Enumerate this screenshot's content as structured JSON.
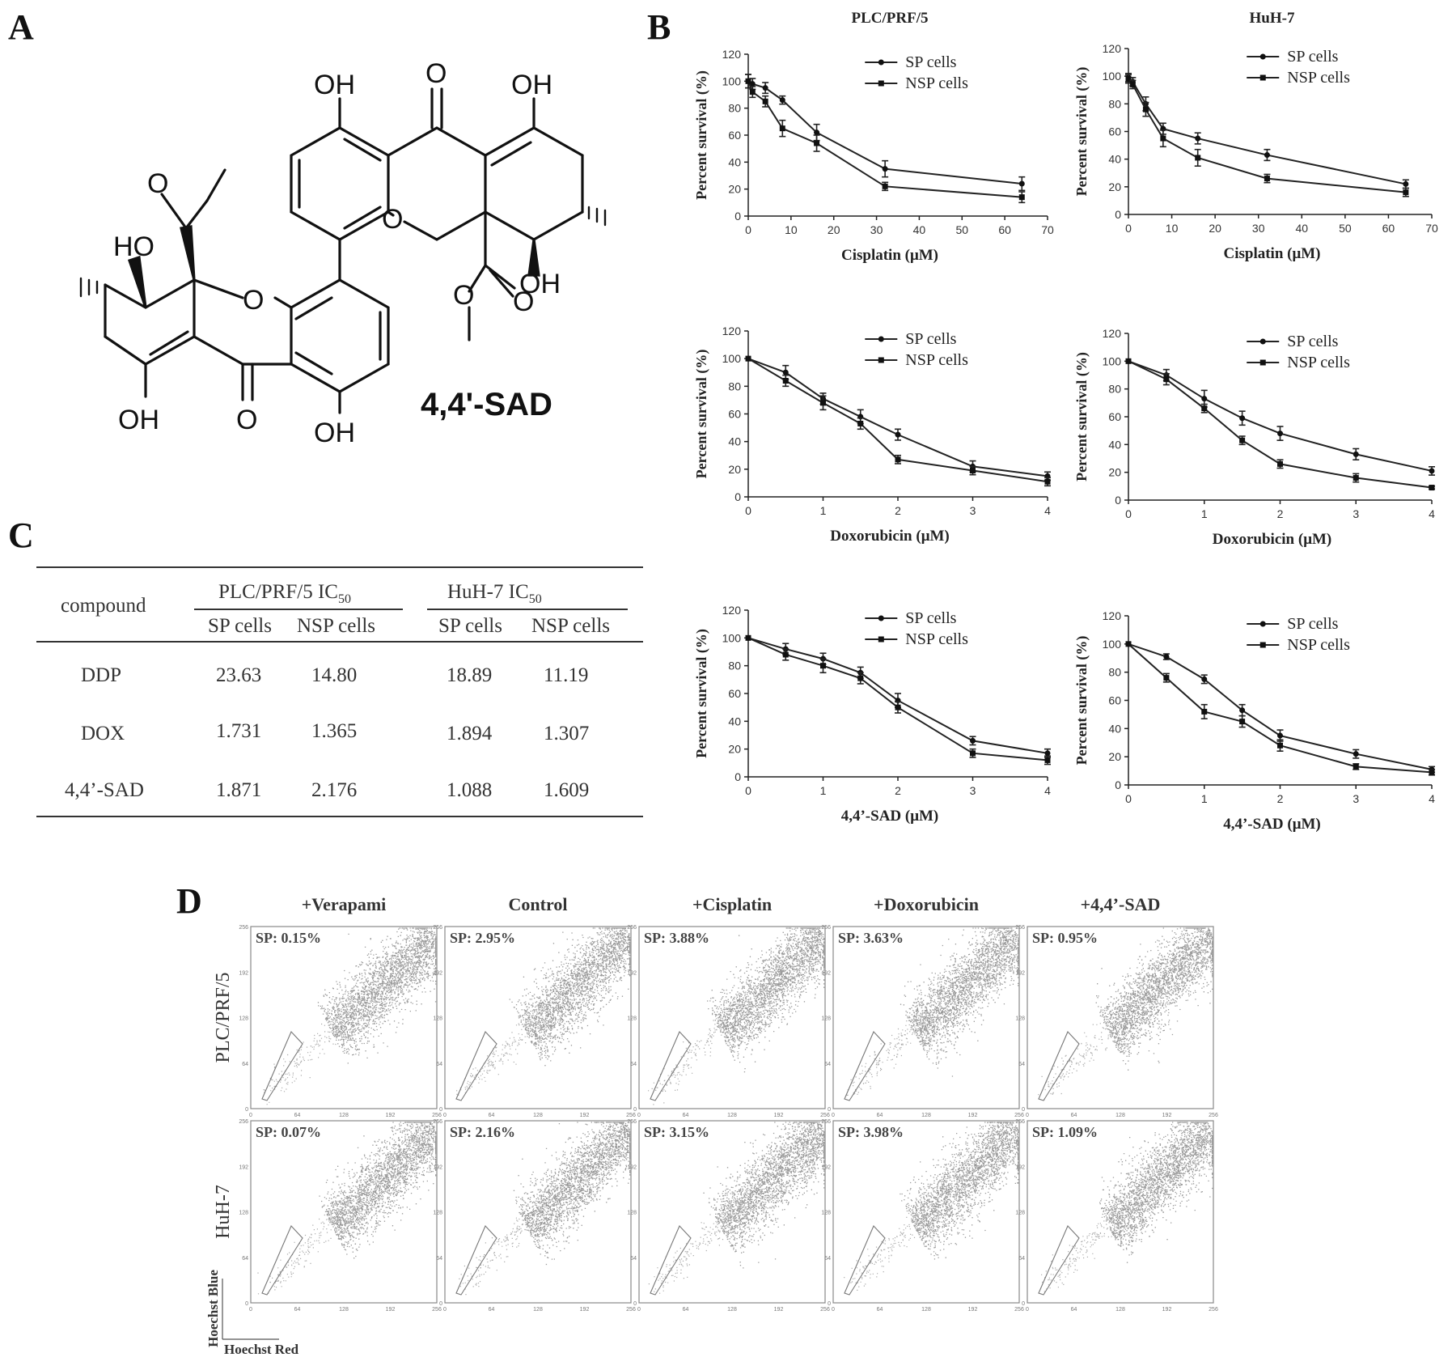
{
  "panel_letters": {
    "a": "A",
    "b": "B",
    "c": "C",
    "d": "D"
  },
  "panel_a": {
    "compound_name": "4,4'-SAD",
    "atoms": {
      "oh": "OH",
      "ho": "HO",
      "o": "O"
    }
  },
  "panel_c": {
    "col_compound": "compound",
    "group1": "PLC/PRF/5 IC",
    "group2": "HuH-7 IC",
    "subscript": "50",
    "sub_headers": [
      "SP cells",
      "NSP cells",
      "SP cells",
      "NSP cells"
    ],
    "rows": [
      {
        "compound": "DDP",
        "values": [
          "23.63",
          "14.80",
          "18.89",
          "11.19"
        ]
      },
      {
        "compound": "DOX",
        "values": [
          "1.731",
          "1.365",
          "1.894",
          "1.307"
        ]
      },
      {
        "compound": "4,4’-SAD",
        "values": [
          "1.871",
          "2.176",
          "1.088",
          "1.609"
        ]
      }
    ]
  },
  "chart_data": [
    {
      "type": "line",
      "title": "PLC/PRF/5",
      "xlabel": "Cisplatin (μM)",
      "ylabel": "Percent survival (%)",
      "xlim": [
        0,
        70
      ],
      "ylim": [
        0,
        120
      ],
      "xticks": [
        0,
        10,
        20,
        30,
        40,
        50,
        60,
        70
      ],
      "yticks": [
        0,
        20,
        40,
        60,
        80,
        100,
        120
      ],
      "legend": "top-right",
      "series": [
        {
          "name": "SP cells",
          "marker": "circle",
          "x": [
            0,
            1,
            4,
            8,
            16,
            32,
            64
          ],
          "y": [
            100,
            98,
            95,
            86,
            62,
            35,
            24
          ],
          "err": [
            5,
            4,
            4,
            3,
            6,
            6,
            5
          ]
        },
        {
          "name": "NSP cells",
          "marker": "square",
          "x": [
            0,
            1,
            4,
            8,
            16,
            32,
            64
          ],
          "y": [
            100,
            92,
            85,
            65,
            54,
            22,
            14
          ],
          "err": [
            5,
            4,
            4,
            6,
            6,
            3,
            4
          ]
        }
      ]
    },
    {
      "type": "line",
      "title": "HuH-7",
      "xlabel": "Cisplatin (μM)",
      "ylabel": "Percent survival (%)",
      "xlim": [
        0,
        70
      ],
      "ylim": [
        0,
        120
      ],
      "xticks": [
        0,
        10,
        20,
        30,
        40,
        50,
        60,
        70
      ],
      "yticks": [
        0,
        20,
        40,
        60,
        80,
        100,
        120
      ],
      "legend": "top-right",
      "series": [
        {
          "name": "SP cells",
          "marker": "circle",
          "x": [
            0,
            1,
            4,
            8,
            16,
            32,
            64
          ],
          "y": [
            99,
            96,
            80,
            62,
            55,
            43,
            22
          ],
          "err": [
            3,
            3,
            5,
            4,
            4,
            4,
            3
          ]
        },
        {
          "name": "NSP cells",
          "marker": "square",
          "x": [
            0,
            1,
            4,
            8,
            16,
            32,
            64
          ],
          "y": [
            98,
            94,
            76,
            55,
            41,
            26,
            16
          ],
          "err": [
            3,
            3,
            5,
            6,
            6,
            3,
            3
          ]
        }
      ]
    },
    {
      "type": "line",
      "title": "",
      "xlabel": "Doxorubicin (μM)",
      "ylabel": "Percent survival (%)",
      "xlim": [
        0,
        4
      ],
      "ylim": [
        0,
        120
      ],
      "xticks": [
        0,
        1,
        2,
        3,
        4
      ],
      "yticks": [
        0,
        20,
        40,
        60,
        80,
        100,
        120
      ],
      "legend": "top-right",
      "series": [
        {
          "name": "SP cells",
          "marker": "circle",
          "x": [
            0,
            0.5,
            1,
            1.5,
            2,
            3,
            4
          ],
          "y": [
            100,
            90,
            71,
            58,
            45,
            22,
            15
          ],
          "err": [
            0,
            5,
            4,
            5,
            4,
            4,
            3
          ]
        },
        {
          "name": "NSP cells",
          "marker": "square",
          "x": [
            0,
            0.5,
            1,
            1.5,
            2,
            3,
            4
          ],
          "y": [
            100,
            84,
            68,
            53,
            27,
            19,
            11
          ],
          "err": [
            0,
            4,
            5,
            4,
            3,
            3,
            3
          ]
        }
      ]
    },
    {
      "type": "line",
      "title": "",
      "xlabel": "Doxorubicin (μM)",
      "ylabel": "Percent survival (%)",
      "xlim": [
        0,
        4
      ],
      "ylim": [
        0,
        120
      ],
      "xticks": [
        0,
        1,
        2,
        3,
        4
      ],
      "yticks": [
        0,
        20,
        40,
        60,
        80,
        100,
        120
      ],
      "legend": "top-right",
      "series": [
        {
          "name": "SP cells",
          "marker": "circle",
          "x": [
            0,
            0.5,
            1,
            1.5,
            2,
            3,
            4
          ],
          "y": [
            100,
            90,
            73,
            59,
            48,
            33,
            21
          ],
          "err": [
            0,
            4,
            6,
            5,
            5,
            4,
            3
          ]
        },
        {
          "name": "NSP cells",
          "marker": "square",
          "x": [
            0,
            0.5,
            1,
            1.5,
            2,
            3,
            4
          ],
          "y": [
            100,
            87,
            66,
            43,
            26,
            16,
            9
          ],
          "err": [
            0,
            4,
            3,
            3,
            3,
            3,
            1
          ]
        }
      ]
    },
    {
      "type": "line",
      "title": "",
      "xlabel": "4,4’-SAD (μM)",
      "ylabel": "Percent survival (%)",
      "xlim": [
        0,
        4
      ],
      "ylim": [
        0,
        120
      ],
      "xticks": [
        0,
        1,
        2,
        3,
        4
      ],
      "yticks": [
        0,
        20,
        40,
        60,
        80,
        100,
        120
      ],
      "legend": "top-right",
      "series": [
        {
          "name": "SP cells",
          "marker": "circle",
          "x": [
            0,
            0.5,
            1,
            1.5,
            2,
            3,
            4
          ],
          "y": [
            100,
            92,
            85,
            75,
            55,
            26,
            17
          ],
          "err": [
            0,
            4,
            4,
            4,
            5,
            3,
            3
          ]
        },
        {
          "name": "NSP cells",
          "marker": "square",
          "x": [
            0,
            0.5,
            1,
            1.5,
            2,
            3,
            4
          ],
          "y": [
            100,
            88,
            80,
            71,
            50,
            17,
            12
          ],
          "err": [
            0,
            4,
            5,
            4,
            4,
            3,
            3
          ]
        }
      ]
    },
    {
      "type": "line",
      "title": "",
      "xlabel": "4,4’-SAD (μM)",
      "ylabel": "Percent survival (%)",
      "xlim": [
        0,
        4
      ],
      "ylim": [
        0,
        120
      ],
      "xticks": [
        0,
        1,
        2,
        3,
        4
      ],
      "yticks": [
        0,
        20,
        40,
        60,
        80,
        100,
        120
      ],
      "legend": "top-right",
      "series": [
        {
          "name": "SP cells",
          "marker": "circle",
          "x": [
            0,
            0.5,
            1,
            1.5,
            2,
            3,
            4
          ],
          "y": [
            100,
            91,
            75,
            53,
            35,
            22,
            11
          ],
          "err": [
            0,
            2,
            3,
            4,
            4,
            3,
            2
          ]
        },
        {
          "name": "NSP cells",
          "marker": "square",
          "x": [
            0,
            0.5,
            1,
            1.5,
            2,
            3,
            4
          ],
          "y": [
            100,
            76,
            52,
            45,
            28,
            13,
            9
          ],
          "err": [
            0,
            3,
            5,
            4,
            4,
            2,
            2
          ]
        }
      ]
    }
  ],
  "panel_d": {
    "columns": [
      "+Verapami",
      "Control",
      "+Cisplatin",
      "+Doxorubicin",
      "+4,4’-SAD"
    ],
    "rows": [
      {
        "label": "PLC/PRF/5",
        "sp": [
          "SP: 0.15%",
          "SP: 2.95%",
          "SP: 3.88%",
          "SP: 3.63%",
          "SP: 0.95%"
        ]
      },
      {
        "label": "HuH-7",
        "sp": [
          "SP: 0.07%",
          "SP: 2.16%",
          "SP: 3.15%",
          "SP: 3.98%",
          "SP: 1.09%"
        ]
      }
    ],
    "axis_ticks": [
      "0",
      "64",
      "128",
      "192",
      "256"
    ],
    "x_axis": "Hoechst Red",
    "y_axis": "Hoechst Blue"
  }
}
